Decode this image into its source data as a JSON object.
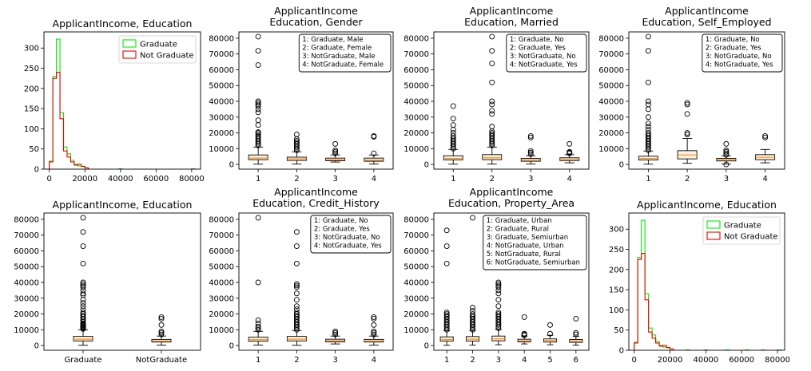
{
  "colors": {
    "graduate": "#00ee00",
    "not_graduate": "#ee0000",
    "box": "#000000",
    "median": "#ff8c1a",
    "box_fill": "#fff3e0"
  },
  "chart_data": [
    {
      "type": "histogram",
      "title": [
        "ApplicantIncome, Education"
      ],
      "xlim": [
        -3000,
        85000
      ],
      "ylim": [
        0,
        340
      ],
      "xticks": [
        0,
        20000,
        40000,
        60000,
        80000
      ],
      "yticks": [
        0,
        50,
        100,
        150,
        200,
        250,
        300
      ],
      "bin_edges": [
        0,
        2000,
        4000,
        6000,
        8000,
        10000,
        12000,
        14000,
        16000,
        18000,
        20000,
        22000
      ],
      "legend": "top-right",
      "series": [
        {
          "name": "Graduate",
          "color": "graduate",
          "values": [
            20,
            230,
            322,
            140,
            55,
            38,
            22,
            12,
            8,
            6,
            3
          ]
        },
        {
          "name": "Not Graduate",
          "color": "not_graduate",
          "values": [
            18,
            225,
            240,
            125,
            45,
            30,
            18,
            10,
            12,
            7,
            3
          ]
        }
      ],
      "outlier_bars": [
        {
          "series": "Graduate",
          "x0": 39000,
          "x1": 41000,
          "value": 1
        },
        {
          "series": "Graduate",
          "x0": 80000,
          "x1": 82000,
          "value": 1
        }
      ]
    },
    {
      "type": "box",
      "title": [
        "ApplicantIncome",
        "Education, Gender"
      ],
      "categories": [
        "1",
        "2",
        "3",
        "4"
      ],
      "ylim": [
        -3000,
        84000
      ],
      "yticks": [
        0,
        10000,
        20000,
        30000,
        40000,
        50000,
        60000,
        70000,
        80000
      ],
      "note": [
        "1: Graduate, Male",
        "2: Graduate, Female",
        "3: NotGraduate, Male",
        "4: NotGraduate, Female"
      ],
      "boxes": [
        {
          "whislo": 150,
          "q1": 3000,
          "med": 4000,
          "q3": 6000,
          "whishi": 11000,
          "fliers": [
            12000,
            13000,
            14000,
            15000,
            16000,
            17000,
            18000,
            19000,
            20000,
            20500,
            25000,
            28000,
            33000,
            35000,
            37000,
            38000,
            39000,
            40000,
            63000,
            72000,
            81000
          ]
        },
        {
          "whislo": 200,
          "q1": 2500,
          "med": 3500,
          "q3": 4600,
          "whishi": 8000,
          "fliers": [
            9000,
            10000,
            11000,
            12000,
            13000,
            14000,
            15000,
            16000,
            19000
          ]
        },
        {
          "whislo": 1500,
          "q1": 2300,
          "med": 3000,
          "q3": 4000,
          "whishi": 6000,
          "fliers": [
            7000,
            8000,
            9000,
            13000
          ]
        },
        {
          "whislo": 210,
          "q1": 2000,
          "med": 2700,
          "q3": 4000,
          "whishi": 6000,
          "fliers": [
            7000,
            17500,
            18000
          ]
        }
      ]
    },
    {
      "type": "box",
      "title": [
        "ApplicantIncome",
        "Education, Married"
      ],
      "categories": [
        "1",
        "2",
        "3",
        "4"
      ],
      "ylim": [
        -3000,
        84000
      ],
      "yticks": [
        0,
        10000,
        20000,
        30000,
        40000,
        50000,
        60000,
        70000,
        80000
      ],
      "note": [
        "1: Graduate, No",
        "2: Graduate, Yes",
        "3: NotGraduate, No",
        "4: NotGraduate, Yes"
      ],
      "boxes": [
        {
          "whislo": 150,
          "q1": 2900,
          "med": 3800,
          "q3": 5500,
          "whishi": 9500,
          "fliers": [
            10000,
            11000,
            12000,
            13000,
            14000,
            15000,
            16000,
            17000,
            18000,
            20000,
            22000,
            25000,
            29000,
            37000
          ]
        },
        {
          "whislo": 200,
          "q1": 3000,
          "med": 4200,
          "q3": 6200,
          "whishi": 11000,
          "fliers": [
            12000,
            13000,
            14000,
            15000,
            16000,
            17000,
            18000,
            19000,
            20000,
            21000,
            24000,
            32000,
            34000,
            38000,
            40000,
            52000,
            64000,
            72000,
            81000
          ]
        },
        {
          "whislo": 210,
          "q1": 2000,
          "med": 2800,
          "q3": 3800,
          "whishi": 5500,
          "fliers": [
            6500,
            7500,
            8500,
            17000,
            18000
          ]
        },
        {
          "whislo": 1000,
          "q1": 2400,
          "med": 3300,
          "q3": 4200,
          "whishi": 6200,
          "fliers": [
            7000,
            7500,
            8000,
            13000
          ]
        }
      ]
    },
    {
      "type": "box",
      "title": [
        "ApplicantIncome",
        "Education, Self_Employed"
      ],
      "categories": [
        "1",
        "2",
        "3",
        "4"
      ],
      "ylim": [
        -3000,
        84000
      ],
      "yticks": [
        0,
        10000,
        20000,
        30000,
        40000,
        50000,
        60000,
        70000,
        80000
      ],
      "note": [
        "1: Graduate, No",
        "2: Graduate, Yes",
        "3: NotGraduate, No",
        "4: NotGraduate, Yes"
      ],
      "boxes": [
        {
          "whislo": 150,
          "q1": 2800,
          "med": 3800,
          "q3": 5200,
          "whishi": 8500,
          "fliers": [
            9000,
            10000,
            11000,
            12000,
            13000,
            14000,
            15000,
            16000,
            17000,
            18000,
            19000,
            20000,
            22000,
            24000,
            26000,
            30000,
            35000,
            38000,
            40000,
            52000,
            72000,
            81000
          ]
        },
        {
          "whislo": 700,
          "q1": 3500,
          "med": 6000,
          "q3": 8700,
          "whishi": 16500,
          "fliers": [
            19000,
            20000,
            32000,
            38000,
            39000
          ]
        },
        {
          "whislo": 210,
          "q1": 2200,
          "med": 3000,
          "q3": 3800,
          "whishi": 5500,
          "fliers": [
            6000,
            7000,
            8000,
            9000,
            13000,
            0
          ]
        },
        {
          "whislo": 1000,
          "q1": 3000,
          "med": 4500,
          "q3": 6200,
          "whishi": 9500,
          "fliers": [
            17000,
            18000
          ]
        }
      ]
    },
    {
      "type": "box",
      "title": [
        "ApplicantIncome, Education"
      ],
      "categories": [
        "Graduate",
        "NotGraduate"
      ],
      "ylim": [
        -3000,
        84000
      ],
      "yticks": [
        0,
        10000,
        20000,
        30000,
        40000,
        50000,
        60000,
        70000,
        80000
      ],
      "note": [],
      "boxes": [
        {
          "whislo": 150,
          "q1": 2900,
          "med": 4000,
          "q3": 5800,
          "whishi": 10000,
          "fliers": [
            10500,
            11000,
            11500,
            12000,
            12500,
            13000,
            13500,
            14000,
            15000,
            16000,
            17000,
            18000,
            19000,
            20000,
            21000,
            23000,
            25000,
            27000,
            29000,
            32000,
            33000,
            35000,
            37000,
            38000,
            39000,
            40000,
            52000,
            63000,
            72000,
            81000
          ]
        },
        {
          "whislo": 210,
          "q1": 2200,
          "med": 2900,
          "q3": 3900,
          "whishi": 6000,
          "fliers": [
            7000,
            8000,
            9000,
            13000,
            17000,
            18000
          ]
        }
      ]
    },
    {
      "type": "box",
      "title": [
        "ApplicantIncome",
        "Education, Credit_History"
      ],
      "categories": [
        "1",
        "2",
        "3",
        "4"
      ],
      "ylim": [
        -3000,
        84000
      ],
      "yticks": [
        0,
        10000,
        20000,
        30000,
        40000,
        50000,
        60000,
        70000,
        80000
      ],
      "note": [
        "1: Graduate, No",
        "2: Graduate, Yes",
        "3: NotGraduate, No",
        "4: NotGraduate, Yes"
      ],
      "boxes": [
        {
          "whislo": 300,
          "q1": 2700,
          "med": 3700,
          "q3": 5300,
          "whishi": 9000,
          "fliers": [
            10000,
            11000,
            12000,
            14000,
            16000,
            40000,
            81000
          ]
        },
        {
          "whislo": 150,
          "q1": 2900,
          "med": 4000,
          "q3": 5800,
          "whishi": 9500,
          "fliers": [
            10000,
            11000,
            12000,
            13000,
            14000,
            15000,
            16000,
            17000,
            18000,
            19000,
            20000,
            21000,
            23000,
            25000,
            29000,
            33000,
            37000,
            38000,
            39000,
            52000,
            63000,
            72000
          ]
        },
        {
          "whislo": 1000,
          "q1": 2300,
          "med": 3000,
          "q3": 4000,
          "whishi": 6000,
          "fliers": [
            7000,
            8000,
            9000
          ]
        },
        {
          "whislo": 210,
          "q1": 2200,
          "med": 2900,
          "q3": 3900,
          "whishi": 6000,
          "fliers": [
            7000,
            8000,
            9000,
            13000,
            17000,
            18000
          ]
        }
      ]
    },
    {
      "type": "box",
      "title": [
        "ApplicantIncome",
        "Education, Property_Area"
      ],
      "categories": [
        "1",
        "2",
        "3",
        "4",
        "5",
        "6"
      ],
      "ylim": [
        -3000,
        84000
      ],
      "yticks": [
        0,
        10000,
        20000,
        30000,
        40000,
        50000,
        60000,
        70000,
        80000
      ],
      "note": [
        "1: Graduate, Urban",
        "2: Graduate, Rural",
        "3: Graduate, Semiurban",
        "4: NotGraduate, Urban",
        "5: NotGraduate, Rural",
        "6: NotGraduate, Semiurban"
      ],
      "boxes": [
        {
          "whislo": 150,
          "q1": 2800,
          "med": 3800,
          "q3": 5500,
          "whishi": 9500,
          "fliers": [
            10000,
            11000,
            12000,
            13000,
            14000,
            15000,
            16000,
            17000,
            18000,
            19000,
            20000,
            21000,
            52000,
            63000,
            73000
          ]
        },
        {
          "whislo": 300,
          "q1": 2800,
          "med": 4000,
          "q3": 5700,
          "whishi": 9500,
          "fliers": [
            10000,
            11000,
            12000,
            13000,
            14000,
            15000,
            16000,
            17000,
            18000,
            19000,
            20000,
            22000,
            24000,
            81000
          ]
        },
        {
          "whislo": 500,
          "q1": 3000,
          "med": 4200,
          "q3": 6000,
          "whishi": 10000,
          "fliers": [
            11000,
            12000,
            13000,
            14000,
            15000,
            16000,
            17000,
            18000,
            19000,
            20000,
            21000,
            25000,
            29000,
            33000,
            35000,
            37000,
            38000,
            39000,
            40000
          ]
        },
        {
          "whislo": 1000,
          "q1": 2300,
          "med": 3000,
          "q3": 4000,
          "whishi": 6000,
          "fliers": [
            6500,
            7000,
            7500,
            18000
          ]
        },
        {
          "whislo": 500,
          "q1": 2200,
          "med": 3200,
          "q3": 4200,
          "whishi": 6500,
          "fliers": [
            7500,
            13000
          ]
        },
        {
          "whislo": 210,
          "q1": 2000,
          "med": 2800,
          "q3": 3800,
          "whishi": 5800,
          "fliers": [
            7000,
            8000,
            17000
          ]
        }
      ]
    },
    {
      "type": "histogram",
      "title": [
        "ApplicantIncome, Education"
      ],
      "xlim": [
        -3000,
        84000
      ],
      "ylim": [
        0,
        340
      ],
      "xticks": [
        0,
        20000,
        40000,
        60000,
        80000
      ],
      "yticks": [
        0,
        50,
        100,
        150,
        200,
        250,
        300
      ],
      "bin_edges": [
        0,
        2000,
        4000,
        6000,
        8000,
        10000,
        12000,
        14000,
        16000,
        18000,
        20000,
        22000
      ],
      "legend": "top-right",
      "series": [
        {
          "name": "Graduate",
          "color": "graduate",
          "values": [
            20,
            230,
            322,
            140,
            55,
            38,
            22,
            12,
            8,
            6,
            3
          ]
        },
        {
          "name": "Not Graduate",
          "color": "not_graduate",
          "values": [
            18,
            225,
            240,
            125,
            45,
            30,
            18,
            10,
            12,
            7,
            3
          ]
        }
      ],
      "outlier_bars": [
        {
          "series": "Graduate",
          "x0": 29000,
          "x1": 31000,
          "value": 1
        },
        {
          "series": "Graduate",
          "x0": 39000,
          "x1": 41000,
          "value": 1
        },
        {
          "series": "Graduate",
          "x0": 51000,
          "x1": 53000,
          "value": 1
        },
        {
          "series": "Graduate",
          "x0": 62000,
          "x1": 64000,
          "value": 1
        },
        {
          "series": "Graduate",
          "x0": 71000,
          "x1": 73000,
          "value": 1
        },
        {
          "series": "Graduate",
          "x0": 80000,
          "x1": 82000,
          "value": 1
        }
      ]
    }
  ]
}
